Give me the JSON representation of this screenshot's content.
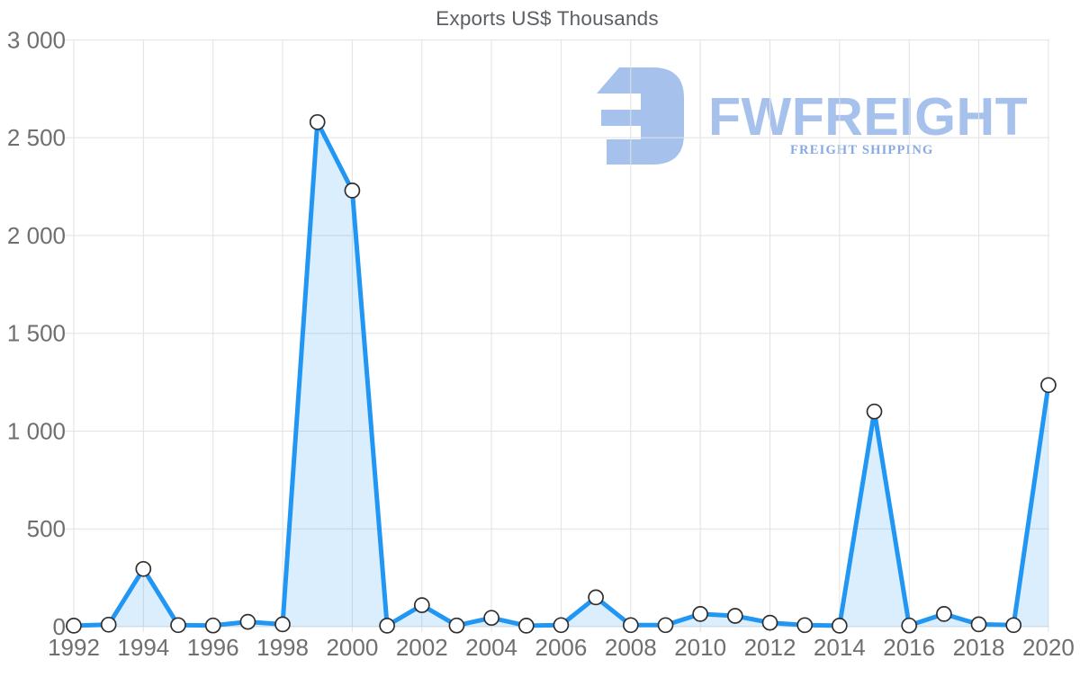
{
  "chart_data": {
    "type": "area",
    "title": "Exports US$ Thousands",
    "xlabel": "",
    "ylabel": "",
    "x": [
      1992,
      1993,
      1994,
      1995,
      1996,
      1997,
      1998,
      1999,
      2000,
      2001,
      2002,
      2003,
      2004,
      2005,
      2006,
      2007,
      2008,
      2009,
      2010,
      2011,
      2012,
      2013,
      2014,
      2015,
      2016,
      2017,
      2018,
      2019,
      2020
    ],
    "values": [
      5,
      10,
      295,
      8,
      6,
      25,
      12,
      2580,
      2230,
      5,
      110,
      6,
      45,
      5,
      8,
      150,
      8,
      8,
      65,
      55,
      20,
      8,
      5,
      1100,
      6,
      65,
      12,
      8,
      1235
    ],
    "ylim": [
      0,
      3000
    ],
    "xlim": [
      1992,
      2020
    ],
    "y_ticks": {
      "values": [
        0,
        500,
        1000,
        1500,
        2000,
        2500,
        3000
      ],
      "labels": [
        "0",
        "500",
        "1 000",
        "1 500",
        "2 000",
        "2 500",
        "3 000"
      ]
    },
    "x_ticks": {
      "values": [
        1992,
        1994,
        1996,
        1998,
        2000,
        2002,
        2004,
        2006,
        2008,
        2010,
        2012,
        2014,
        2016,
        2018,
        2020
      ],
      "labels": [
        "1992",
        "1994",
        "1996",
        "1998",
        "2000",
        "2002",
        "2004",
        "2006",
        "2008",
        "2010",
        "2012",
        "2014",
        "2016",
        "2018",
        "2020"
      ]
    },
    "grid": true,
    "legend": "none",
    "marker": "circle"
  },
  "watermark": {
    "brand": "FWFREIGHT",
    "tagline": "FREIGHT SHIPPING"
  },
  "colors": {
    "line": "#2196f3",
    "area_fill": "#2196f3",
    "area_fill_opacity": "0.16",
    "marker_fill": "#ffffff",
    "marker_stroke": "#2f2f2f",
    "grid": "#e2e2e2",
    "baseline": "#d9d9d9",
    "axis_text": "#6f6f6f",
    "title_text": "#5b5f63",
    "logo_primary": "#a7c1ed",
    "logo_tagline": "#87a9e3"
  }
}
